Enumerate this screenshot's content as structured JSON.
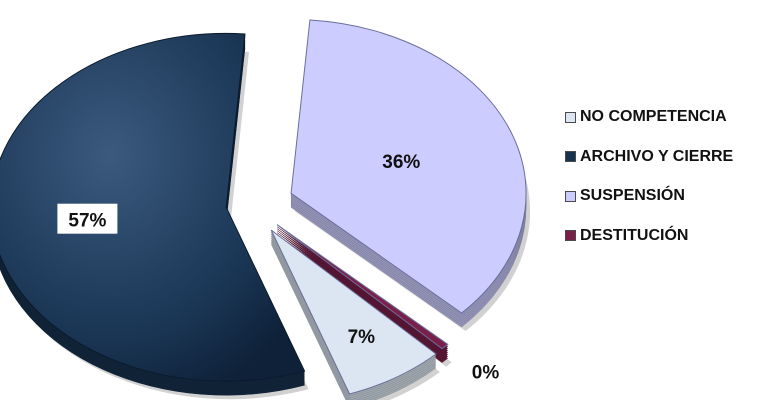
{
  "chart_data": {
    "type": "pie",
    "title": "",
    "labels": [
      "NO COMPETENCIA",
      "ARCHIVO Y CIERRE",
      "SUSPENSIÓN",
      "DESTITUCIÓN"
    ],
    "values": [
      7,
      57,
      36,
      0
    ],
    "value_labels": [
      "7%",
      "57%",
      "36%",
      "0%"
    ],
    "colors": [
      "#dce6f2",
      "#17324f",
      "#ccccff",
      "#7a1f4a"
    ],
    "exploded": true,
    "three_d": true,
    "legend_position": "right"
  }
}
